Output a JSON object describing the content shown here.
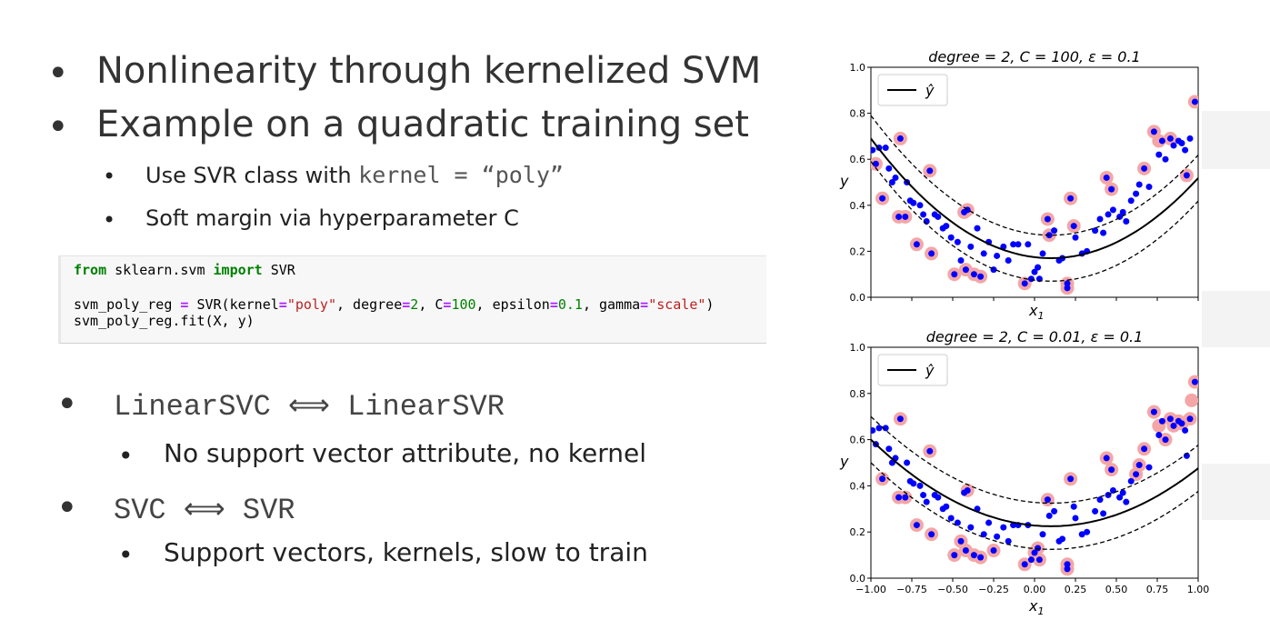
{
  "bullets": {
    "b1": "Nonlinearity through kernelized SVM",
    "b2": "Example on a quadratic training set",
    "b2_sub1_prefix": "Use SVR class with ",
    "b2_sub1_code": "kernel = “poly”",
    "b2_sub2": "Soft margin via hyperparameter C",
    "b3": "LinearSVC ⟺ LinearSVR",
    "b3_sub": "No support vector attribute, no kernel",
    "b4": "SVC ⟺ SVR",
    "b4_sub": "Support vectors, kernels, slow to train"
  },
  "code": {
    "line1_from": "from",
    "line1_mod": " sklearn.svm ",
    "line1_import": "import",
    "line1_name": " SVR",
    "line2_a": "svm_poly_reg ",
    "line2_eq": "=",
    "line2_b": " SVR(kernel",
    "line2_kernel": "\"poly\"",
    "line2_c": ", degree",
    "line2_deg": "2",
    "line2_d": ", C",
    "line2_C": "100",
    "line2_e": ", epsilon",
    "line2_eps": "0.1",
    "line2_f": ", gamma",
    "line2_gamma": "\"scale\"",
    "line2_g": ")",
    "line3": "svm_poly_reg.fit(X, y)"
  },
  "chart_data": [
    {
      "type": "scatter",
      "title": "degree = 2, C = 100, ε = 0.1",
      "xlabel": "x1",
      "ylabel": "y",
      "xlim": [
        -1.0,
        1.0
      ],
      "ylim": [
        0.0,
        1.0
      ],
      "yticks": [
        "0.0",
        "0.2",
        "0.4",
        "0.6",
        "0.8",
        "1.0"
      ],
      "xticks": [],
      "legend": {
        "position": "upper-left",
        "label": "ŷ"
      },
      "model": {
        "a": 0.43,
        "b": 0.1,
        "c": 0.17,
        "epsilon": 0.1
      },
      "series": [
        {
          "name": "ŷ",
          "style": "line"
        }
      ]
    },
    {
      "type": "scatter",
      "title": "degree = 2, C = 0.01, ε = 0.1",
      "xlabel": "x1",
      "ylabel": "y",
      "xlim": [
        -1.0,
        1.0
      ],
      "ylim": [
        0.0,
        1.0
      ],
      "yticks": [
        "0.0",
        "0.2",
        "0.4",
        "0.6",
        "0.8",
        "1.0"
      ],
      "xticks": [
        "−1.00",
        "−0.75",
        "−0.50",
        "−0.25",
        "0.00",
        "0.25",
        "0.50",
        "0.75",
        "1.00"
      ],
      "legend": {
        "position": "upper-left",
        "label": "ŷ"
      },
      "model": {
        "a": 0.31,
        "b": 0.1,
        "c": 0.225,
        "epsilon": 0.1
      },
      "series": [
        {
          "name": "ŷ",
          "style": "line"
        }
      ]
    }
  ],
  "points": [
    [
      -0.99,
      0.64
    ],
    [
      -0.97,
      0.58
    ],
    [
      -0.95,
      0.65
    ],
    [
      -0.93,
      0.43
    ],
    [
      -0.91,
      0.65
    ],
    [
      -0.89,
      0.56
    ],
    [
      -0.87,
      0.5
    ],
    [
      -0.85,
      0.52
    ],
    [
      -0.83,
      0.35
    ],
    [
      -0.82,
      0.69
    ],
    [
      -0.79,
      0.35
    ],
    [
      -0.78,
      0.5
    ],
    [
      -0.76,
      0.42
    ],
    [
      -0.74,
      0.41
    ],
    [
      -0.72,
      0.23
    ],
    [
      -0.7,
      0.4
    ],
    [
      -0.68,
      0.36
    ],
    [
      -0.66,
      0.33
    ],
    [
      -0.64,
      0.55
    ],
    [
      -0.63,
      0.19
    ],
    [
      -0.61,
      0.36
    ],
    [
      -0.59,
      0.35
    ],
    [
      -0.56,
      0.3
    ],
    [
      -0.54,
      0.31
    ],
    [
      -0.51,
      0.26
    ],
    [
      -0.49,
      0.1
    ],
    [
      -0.47,
      0.24
    ],
    [
      -0.45,
      0.16
    ],
    [
      -0.43,
      0.37
    ],
    [
      -0.42,
      0.12
    ],
    [
      -0.41,
      0.38
    ],
    [
      -0.39,
      0.22
    ],
    [
      -0.37,
      0.1
    ],
    [
      -0.35,
      0.3
    ],
    [
      -0.33,
      0.09
    ],
    [
      -0.31,
      0.19
    ],
    [
      -0.28,
      0.24
    ],
    [
      -0.25,
      0.12
    ],
    [
      -0.23,
      0.18
    ],
    [
      -0.19,
      0.22
    ],
    [
      -0.16,
      0.16
    ],
    [
      -0.13,
      0.23
    ],
    [
      -0.1,
      0.23
    ],
    [
      -0.06,
      0.06
    ],
    [
      -0.04,
      0.23
    ],
    [
      -0.02,
      0.08
    ],
    [
      0.0,
      0.11
    ],
    [
      0.02,
      0.13
    ],
    [
      0.03,
      0.08
    ],
    [
      0.05,
      0.19
    ],
    [
      0.08,
      0.34
    ],
    [
      0.09,
      0.27
    ],
    [
      0.12,
      0.29
    ],
    [
      0.15,
      0.16
    ],
    [
      0.17,
      0.17
    ],
    [
      0.2,
      0.06
    ],
    [
      0.2,
      0.04
    ],
    [
      0.22,
      0.43
    ],
    [
      0.24,
      0.31
    ],
    [
      0.25,
      0.26
    ],
    [
      0.29,
      0.19
    ],
    [
      0.32,
      0.2
    ],
    [
      0.37,
      0.29
    ],
    [
      0.4,
      0.34
    ],
    [
      0.42,
      0.28
    ],
    [
      0.44,
      0.52
    ],
    [
      0.45,
      0.36
    ],
    [
      0.47,
      0.47
    ],
    [
      0.48,
      0.38
    ],
    [
      0.52,
      0.35
    ],
    [
      0.54,
      0.37
    ],
    [
      0.56,
      0.33
    ],
    [
      0.59,
      0.42
    ],
    [
      0.62,
      0.45
    ],
    [
      0.64,
      0.49
    ],
    [
      0.67,
      0.56
    ],
    [
      0.7,
      0.48
    ],
    [
      0.73,
      0.72
    ],
    [
      0.76,
      0.62
    ],
    [
      0.78,
      0.68
    ],
    [
      0.8,
      0.6
    ],
    [
      0.83,
      0.69
    ],
    [
      0.85,
      0.66
    ],
    [
      0.88,
      0.68
    ],
    [
      0.9,
      0.67
    ],
    [
      0.92,
      0.64
    ],
    [
      0.93,
      0.53
    ],
    [
      0.95,
      0.69
    ],
    [
      0.98,
      0.85
    ]
  ],
  "support": [
    [
      [
        -0.97,
        0.58
      ],
      [
        -0.93,
        0.43
      ],
      [
        -0.82,
        0.69
      ],
      [
        -0.83,
        0.35
      ],
      [
        -0.79,
        0.35
      ],
      [
        -0.72,
        0.23
      ],
      [
        -0.64,
        0.55
      ],
      [
        -0.63,
        0.19
      ],
      [
        -0.49,
        0.1
      ],
      [
        -0.43,
        0.37
      ],
      [
        -0.41,
        0.38
      ],
      [
        -0.42,
        0.12
      ],
      [
        -0.37,
        0.1
      ],
      [
        -0.33,
        0.09
      ],
      [
        -0.06,
        0.06
      ],
      [
        0.08,
        0.34
      ],
      [
        0.09,
        0.27
      ],
      [
        0.2,
        0.06
      ],
      [
        0.2,
        0.04
      ],
      [
        0.22,
        0.43
      ],
      [
        0.24,
        0.31
      ],
      [
        0.44,
        0.52
      ],
      [
        0.47,
        0.47
      ],
      [
        0.67,
        0.56
      ],
      [
        0.73,
        0.72
      ],
      [
        0.76,
        0.68
      ],
      [
        0.83,
        0.69
      ],
      [
        0.93,
        0.53
      ],
      [
        0.98,
        0.85
      ]
    ],
    [
      [
        -0.93,
        0.43
      ],
      [
        -0.82,
        0.69
      ],
      [
        -0.83,
        0.35
      ],
      [
        -0.79,
        0.35
      ],
      [
        -0.72,
        0.23
      ],
      [
        -0.64,
        0.55
      ],
      [
        -0.63,
        0.19
      ],
      [
        -0.49,
        0.1
      ],
      [
        -0.45,
        0.16
      ],
      [
        -0.42,
        0.12
      ],
      [
        -0.41,
        0.38
      ],
      [
        -0.37,
        0.1
      ],
      [
        -0.33,
        0.09
      ],
      [
        -0.25,
        0.12
      ],
      [
        -0.06,
        0.06
      ],
      [
        0.0,
        0.11
      ],
      [
        0.02,
        0.13
      ],
      [
        0.03,
        0.08
      ],
      [
        0.08,
        0.34
      ],
      [
        0.2,
        0.06
      ],
      [
        0.2,
        0.04
      ],
      [
        0.22,
        0.43
      ],
      [
        0.44,
        0.52
      ],
      [
        0.47,
        0.47
      ],
      [
        0.62,
        0.45
      ],
      [
        0.64,
        0.49
      ],
      [
        0.67,
        0.56
      ],
      [
        0.73,
        0.72
      ],
      [
        0.76,
        0.66
      ],
      [
        0.8,
        0.6
      ],
      [
        0.83,
        0.69
      ],
      [
        0.85,
        0.66
      ],
      [
        0.88,
        0.68
      ],
      [
        0.9,
        0.67
      ],
      [
        0.95,
        0.69
      ],
      [
        0.98,
        0.85
      ],
      [
        0.96,
        0.77
      ]
    ]
  ],
  "colors": {
    "point": "#0000ff",
    "support": "#f4a6a6",
    "curve": "#000000"
  }
}
